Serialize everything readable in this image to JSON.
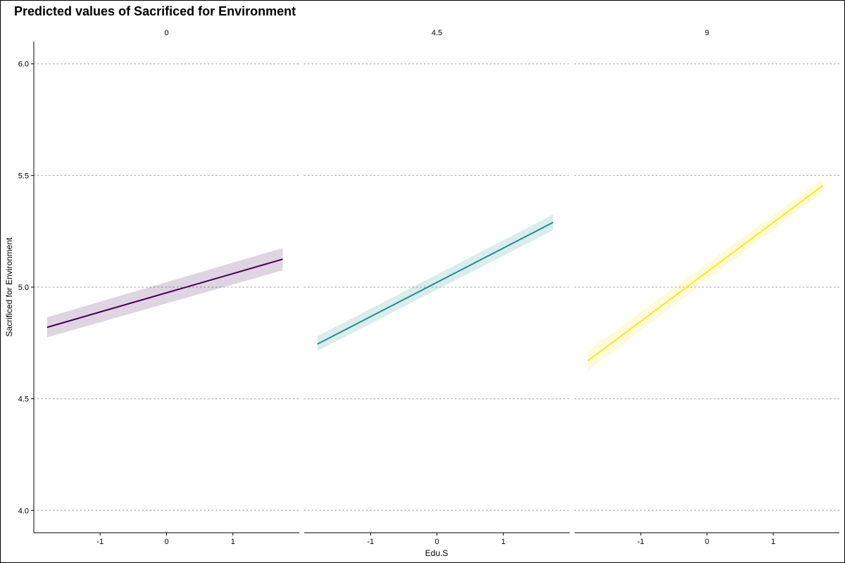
{
  "chart_data": {
    "type": "line",
    "title": "Predicted values of Sacrificed for Environment",
    "xlabel": "Edu.S",
    "ylabel": "Sacrificed for Environment",
    "xlim": [
      -2.0,
      2.0
    ],
    "ylim": [
      3.9,
      6.1
    ],
    "x_ticks": [
      -1,
      0,
      1
    ],
    "y_ticks": [
      4.0,
      4.5,
      5.0,
      5.5,
      6.0
    ],
    "x_tick_labels": [
      "-1",
      "0",
      "1"
    ],
    "y_tick_labels": [
      "4.0",
      "4.5",
      "5.0",
      "5.5",
      "6.0"
    ],
    "grid": "horizontal-dotted",
    "panels": [
      {
        "strip": "0",
        "color": "#440154",
        "ribbon_color": "#440154",
        "x": [
          -1.8,
          1.75
        ],
        "y": [
          4.82,
          5.125
        ],
        "ci_low": [
          4.775,
          5.075
        ],
        "ci_high": [
          4.865,
          5.175
        ]
      },
      {
        "strip": "4.5",
        "color": "#21908C",
        "ribbon_color": "#21908C",
        "x": [
          -1.8,
          1.75
        ],
        "y": [
          4.745,
          5.29
        ],
        "ci_low": [
          4.715,
          5.255
        ],
        "ci_high": [
          4.78,
          5.325
        ]
      },
      {
        "strip": "9",
        "color": "#FDE725",
        "ribbon_color": "#FDE725",
        "x": [
          -1.8,
          1.75
        ],
        "y": [
          4.67,
          5.455
        ],
        "ci_low": [
          4.625,
          5.425
        ],
        "ci_high": [
          4.715,
          5.485
        ]
      }
    ]
  }
}
